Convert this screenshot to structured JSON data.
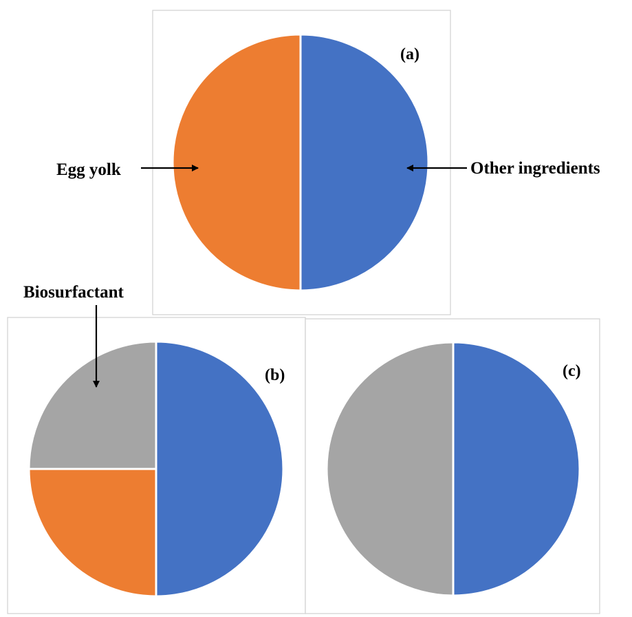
{
  "colors": {
    "other_ingredients": "#4472C4",
    "egg_yolk": "#ED7D31",
    "biosurfactant": "#A5A5A5"
  },
  "labels": {
    "egg_yolk": "Egg yolk",
    "other_ingredients": "Other ingredients",
    "biosurfactant": "Biosurfactant"
  },
  "chart_data": [
    {
      "type": "pie",
      "panel_label": "(a)",
      "slices": [
        {
          "key": "other_ingredients",
          "value": 50
        },
        {
          "key": "egg_yolk",
          "value": 50
        }
      ]
    },
    {
      "type": "pie",
      "panel_label": "(b)",
      "slices": [
        {
          "key": "other_ingredients",
          "value": 50
        },
        {
          "key": "egg_yolk",
          "value": 25
        },
        {
          "key": "biosurfactant",
          "value": 25
        }
      ]
    },
    {
      "type": "pie",
      "panel_label": "(c)",
      "slices": [
        {
          "key": "other_ingredients",
          "value": 50
        },
        {
          "key": "biosurfactant",
          "value": 50
        }
      ]
    }
  ]
}
